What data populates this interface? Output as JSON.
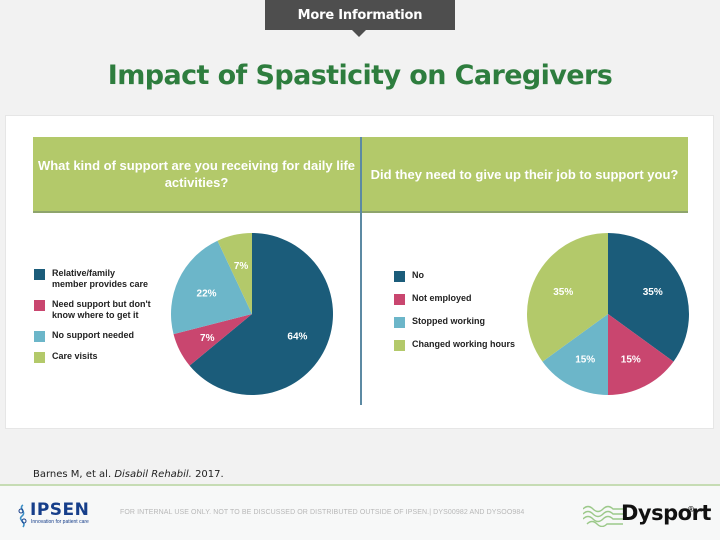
{
  "header": {
    "more_info_button": "More Information",
    "title": "Impact of Spasticity on Caregivers"
  },
  "colors": {
    "dark_blue": "#1b5c7a",
    "pink": "#c9466f",
    "light_blue": "#6cb6c9",
    "green": "#b3c96a",
    "title_green": "#2e7d3e"
  },
  "chart_data": [
    {
      "type": "pie",
      "title": "What kind of support are you receiving for daily life activities?",
      "categories": [
        "Relative/family member provides care",
        "Need support but don't know where to get it",
        "No support needed",
        "Care visits"
      ],
      "values": [
        64,
        7,
        22,
        7
      ],
      "labels": [
        "64%",
        "7%",
        "22%",
        "7%"
      ],
      "colors": [
        "#1b5c7a",
        "#c9466f",
        "#6cb6c9",
        "#b3c96a"
      ],
      "legend_position": "left",
      "start": "12 o'clock, clockwise"
    },
    {
      "type": "pie",
      "title": "Did they need to give up their job to support you?",
      "categories": [
        "No",
        "Not employed",
        "Stopped working",
        "Changed working hours"
      ],
      "values": [
        35,
        15,
        15,
        35
      ],
      "labels": [
        "35%",
        "15%",
        "15%",
        "35%"
      ],
      "colors": [
        "#1b5c7a",
        "#c9466f",
        "#6cb6c9",
        "#b3c96a"
      ],
      "legend_position": "left",
      "start": "12 o'clock, clockwise"
    }
  ],
  "legend_left": [
    "Relative/family\nmember provides care",
    "Need support but don't\nknow where to get it",
    "No support needed",
    "Care visits"
  ],
  "legend_right": [
    "No",
    "Not employed",
    "Stopped working",
    "Changed working hours"
  ],
  "citation": {
    "authors": "Barnes M, et al.",
    "journal": "Disabil Rehabil.",
    "year": "2017."
  },
  "footer": {
    "ipsen_brand": "IPSEN",
    "ipsen_tagline": "Innovation for patient care",
    "disclaimer": "FOR INTERNAL USE ONLY. NOT TO BE DISCUSSED OR DISTRIBUTED OUTSIDE OF IPSEN.| DYS00982 AND DYSOO984",
    "dysport_brand": "Dysport",
    "dysport_reg": "®"
  }
}
